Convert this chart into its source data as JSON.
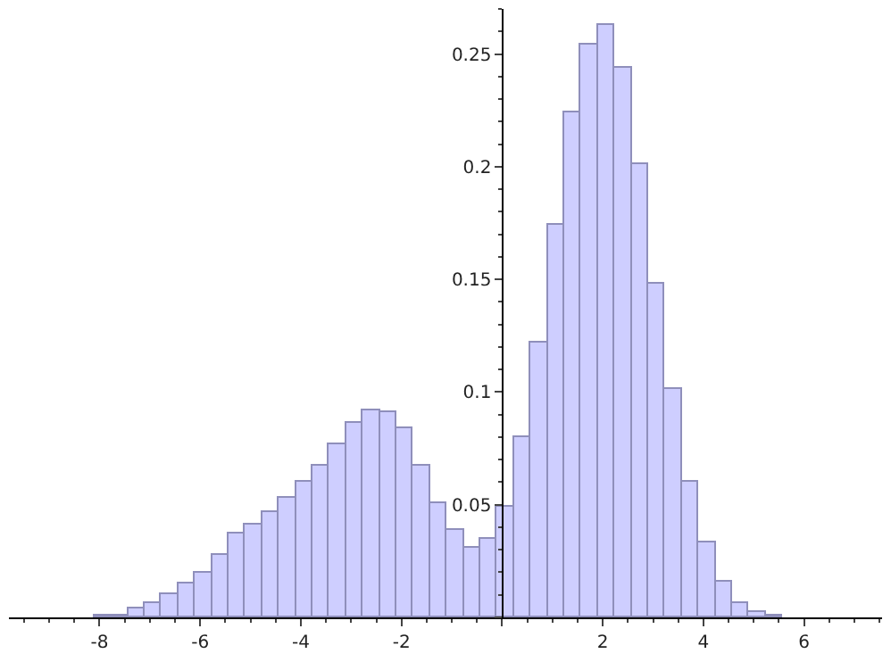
{
  "chart_data": {
    "type": "histogram",
    "bins": [
      -8.1,
      -7.767,
      -7.433,
      -7.1,
      -6.767,
      -6.433,
      -6.1,
      -5.767,
      -5.433,
      -5.1,
      -4.767,
      -4.433,
      -4.1,
      -3.767,
      -3.433,
      -3.1,
      -2.767,
      -2.433,
      -2.1,
      -1.767,
      -1.433,
      -1.1,
      -0.767,
      -0.433,
      -0.1,
      0.233,
      0.567,
      0.9,
      1.233,
      1.567,
      1.9,
      2.233,
      2.567,
      2.9,
      3.233,
      3.567,
      3.9,
      4.233,
      4.567,
      4.9,
      5.233,
      5.567
    ],
    "values": [
      0.0005,
      0.001,
      0.0036,
      0.0063,
      0.01,
      0.015,
      0.02,
      0.028,
      0.037,
      0.041,
      0.047,
      0.053,
      0.06,
      0.067,
      0.077,
      0.086,
      0.092,
      0.091,
      0.084,
      0.067,
      0.051,
      0.039,
      0.031,
      0.035,
      0.049,
      0.08,
      0.122,
      0.174,
      0.224,
      0.254,
      0.263,
      0.244,
      0.201,
      0.148,
      0.101,
      0.06,
      0.033,
      0.016,
      0.0065,
      0.002,
      0.001
    ],
    "color": "#ccccff",
    "xlim": [
      -9.8,
      7.55
    ],
    "ylim": [
      0,
      0.27
    ],
    "xticks": [
      -8,
      -6,
      -4,
      -2,
      {
        "value": 0,
        "label": null
      },
      2,
      4,
      6
    ],
    "yticks": [
      {
        "value": 0,
        "label": null
      },
      0.05,
      0.1,
      0.15,
      0.2,
      0.25
    ]
  }
}
